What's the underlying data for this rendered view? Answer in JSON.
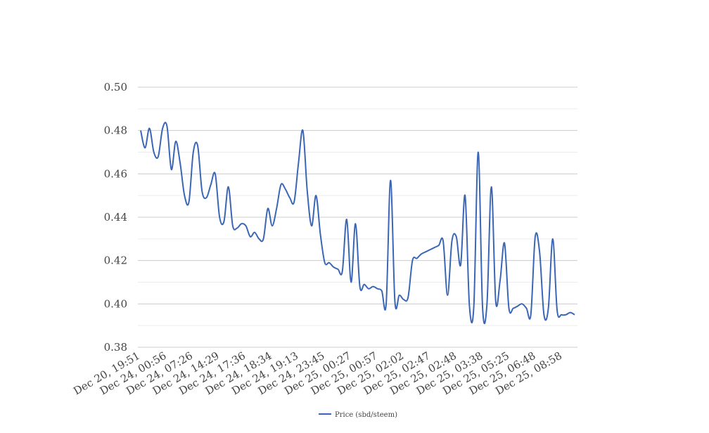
{
  "chart_data": {
    "type": "line",
    "title": "",
    "xlabel": "",
    "ylabel": "",
    "ylim": [
      0.38,
      0.5
    ],
    "yticks": [
      0.38,
      0.4,
      0.42,
      0.44,
      0.46,
      0.48,
      0.5
    ],
    "ytick_labels": [
      "0.38",
      "0.40",
      "0.42",
      "0.44",
      "0.46",
      "0.48",
      "0.50"
    ],
    "grid": true,
    "minor_grid": true,
    "legend": "bottom-center",
    "x_tick_labels": [
      "Dec 20, 19:51",
      "Dec 24, 00:56",
      "Dec 24, 07:26",
      "Dec 24, 14:29",
      "Dec 24, 17:36",
      "Dec 24, 18:34",
      "Dec 24, 19:13",
      "Dec 24, 23:45",
      "Dec 25, 00:27",
      "Dec 25, 00:57",
      "Dec 25, 02:02",
      "Dec 25, 02:47",
      "Dec 25, 02:48",
      "Dec 25, 03:38",
      "Dec 25, 05:25",
      "Dec 25, 06:48",
      "Dec 25, 08:58"
    ],
    "series": [
      {
        "name": "Price (sbd/steem)",
        "color": "#3a66b5",
        "values": [
          0.48,
          0.472,
          0.481,
          0.47,
          0.468,
          0.481,
          0.482,
          0.462,
          0.475,
          0.465,
          0.45,
          0.447,
          0.47,
          0.473,
          0.452,
          0.449,
          0.455,
          0.46,
          0.44,
          0.438,
          0.454,
          0.436,
          0.435,
          0.437,
          0.436,
          0.431,
          0.433,
          0.43,
          0.43,
          0.444,
          0.436,
          0.444,
          0.455,
          0.453,
          0.449,
          0.447,
          0.465,
          0.48,
          0.452,
          0.436,
          0.45,
          0.432,
          0.419,
          0.419,
          0.417,
          0.416,
          0.415,
          0.439,
          0.41,
          0.437,
          0.408,
          0.409,
          0.407,
          0.408,
          0.407,
          0.406,
          0.4,
          0.457,
          0.401,
          0.404,
          0.402,
          0.403,
          0.42,
          0.421,
          0.423,
          0.424,
          0.425,
          0.426,
          0.427,
          0.429,
          0.404,
          0.429,
          0.431,
          0.418,
          0.45,
          0.399,
          0.399,
          0.47,
          0.398,
          0.4,
          0.454,
          0.401,
          0.411,
          0.428,
          0.398,
          0.398,
          0.399,
          0.4,
          0.398,
          0.395,
          0.431,
          0.424,
          0.395,
          0.398,
          0.43,
          0.397,
          0.395,
          0.395,
          0.396,
          0.395
        ]
      }
    ]
  }
}
